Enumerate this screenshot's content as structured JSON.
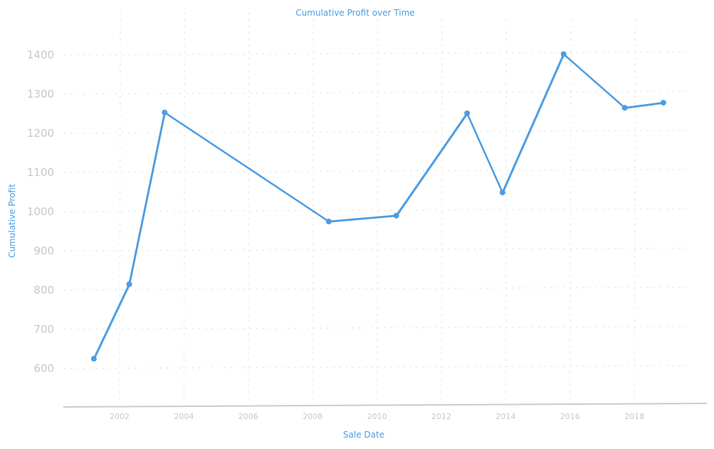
{
  "chart_data": {
    "type": "line",
    "title": "Cumulative Profit over Time",
    "xlabel": "Sale Date",
    "ylabel": "Cumulative Profit",
    "x_ticks": [
      "2002",
      "2004",
      "2006",
      "2008",
      "2010",
      "2012",
      "2014",
      "2016",
      "2018"
    ],
    "y_ticks": [
      "600",
      "700",
      "800",
      "900",
      "1000",
      "1100",
      "1200",
      "1300",
      "1400"
    ],
    "xlim": [
      2000.2,
      2020.1
    ],
    "ylim": [
      500,
      1480
    ],
    "grid": true,
    "series": [
      {
        "color": "#4d9de0",
        "points": [
          {
            "x": 2001.2,
            "y": 625
          },
          {
            "x": 2002.3,
            "y": 815
          },
          {
            "x": 2003.4,
            "y": 1253
          },
          {
            "x": 2008.5,
            "y": 975
          },
          {
            "x": 2010.6,
            "y": 990
          },
          {
            "x": 2012.8,
            "y": 1251
          },
          {
            "x": 2013.9,
            "y": 1049
          },
          {
            "x": 2015.8,
            "y": 1402
          },
          {
            "x": 2017.7,
            "y": 1265
          },
          {
            "x": 2018.9,
            "y": 1278
          }
        ]
      }
    ],
    "colors": {
      "line": "#4d9de0",
      "axis": "#cccccc",
      "grid": "#e6e6e6",
      "tick_text": "#c8c8c8"
    }
  }
}
